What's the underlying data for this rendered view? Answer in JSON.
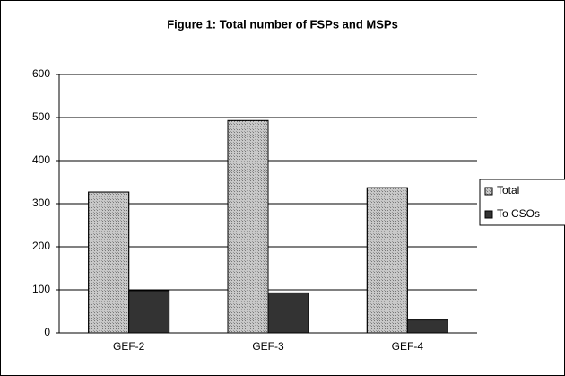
{
  "chart_data": {
    "type": "bar",
    "title": "Figure 1: Total number of FSPs and MSPs",
    "categories": [
      "GEF-2",
      "GEF-3",
      "GEF-4"
    ],
    "series": [
      {
        "name": "Total",
        "color": "#c8c8c8",
        "values": [
          327,
          493,
          337
        ]
      },
      {
        "name": "To CSOs",
        "color": "#333333",
        "values": [
          98,
          93,
          30
        ]
      }
    ],
    "ylim": [
      0,
      600
    ],
    "yticks": [
      0,
      100,
      200,
      300,
      400,
      500,
      600
    ],
    "grid": true,
    "legend": "right"
  }
}
